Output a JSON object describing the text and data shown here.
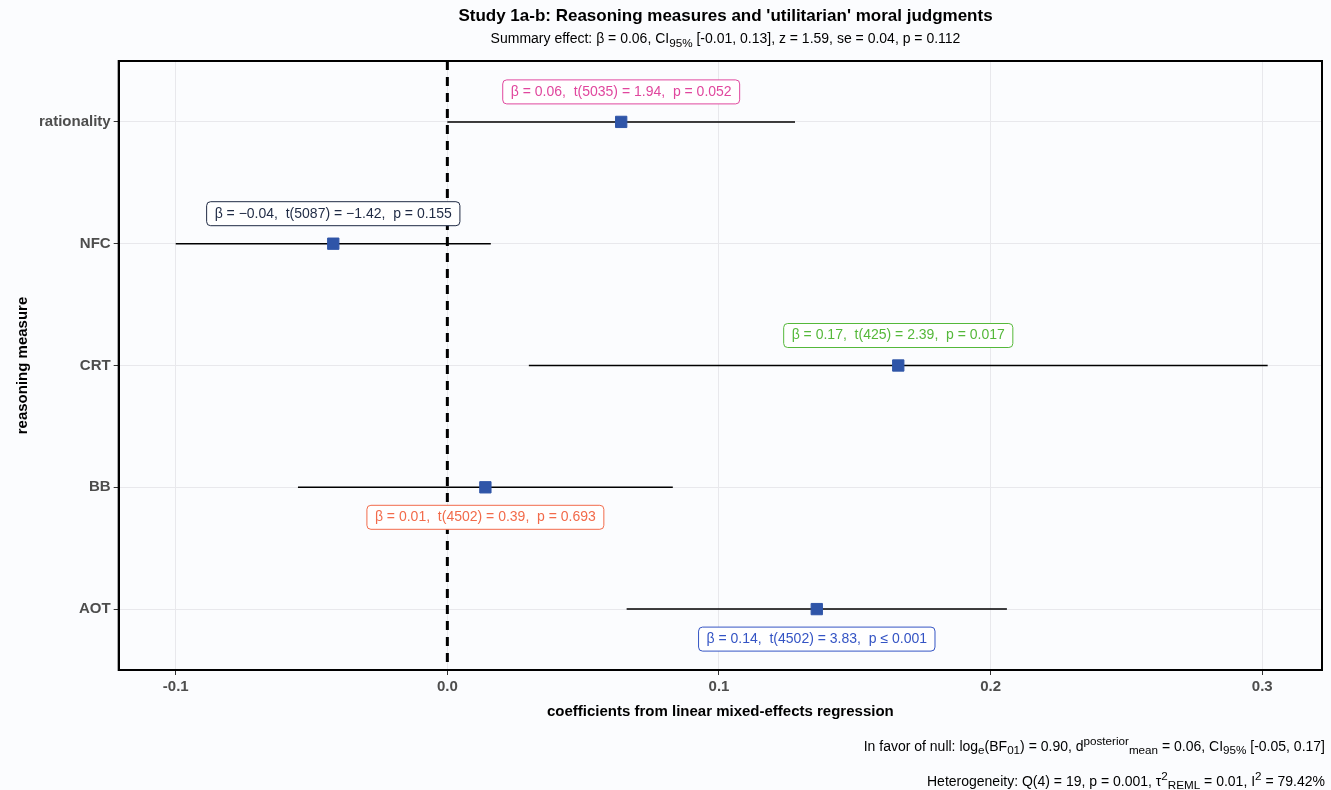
{
  "chart_data": {
    "type": "scatter",
    "orientation": "horizontal",
    "title": "Study 1a-b: Reasoning measures and 'utilitarian' moral judgments",
    "subtitle": "Summary effect: β = 0.06, CI$_{95%}$ [-0.01, 0.13], z = 1.59, se = 0.04, p = 0.112",
    "xlabel": "coefficients from linear mixed-effects regression",
    "ylabel": "reasoning measure",
    "categories": [
      "rationality",
      "NFC",
      "CRT",
      "BB",
      "AOT"
    ],
    "values": [
      0.064,
      -0.042,
      0.166,
      0.014,
      0.136
    ],
    "errors": [
      [
        0.0,
        0.128
      ],
      [
        -0.1,
        0.016
      ],
      [
        0.03,
        0.302
      ],
      [
        -0.055,
        0.083
      ],
      [
        0.066,
        0.206
      ]
    ],
    "value_labels": [
      "β = 0.06,  t(5035) = 1.94,  p = 0.052",
      "β = −0.04,  t(5087) = −1.42,  p = 0.155",
      "β = 0.17,  t(425) = 2.39,  p = 0.017",
      "β = 0.01,  t(4502) = 0.39,  p = 0.693",
      "β = 0.14,  t(4502) = 3.83,  p ≤ 0.001"
    ],
    "color": "#2f55a8",
    "xlim": [
      -0.121,
      0.322
    ],
    "xticks": [
      {
        "value": -0.1,
        "label": "-0.1"
      },
      {
        "value": 0,
        "label": "0.0"
      },
      {
        "value": 0.1,
        "label": "0.1"
      },
      {
        "value": 0.2,
        "label": "0.2"
      },
      {
        "value": 0.3,
        "label": "0.3"
      }
    ],
    "ref_lines": [
      {
        "axis": "x",
        "value": 0,
        "line_style": "dashed",
        "color": "#000000"
      }
    ],
    "grid": true,
    "marker": "square",
    "legend": false,
    "annotations": [
      "In favor of null: log$_{e}$(BF$_{01}$) = 0.90, d$^{posterior}$$_{mean}$ = 0.06, CI$_{95%}$ [-0.05, 0.17]",
      "Heterogeneity: Q(4) = 19, p = 0.001, τ$^{2}$$_{REML}$ = 0.01, I$^{2}$ = 79.42%"
    ]
  }
}
